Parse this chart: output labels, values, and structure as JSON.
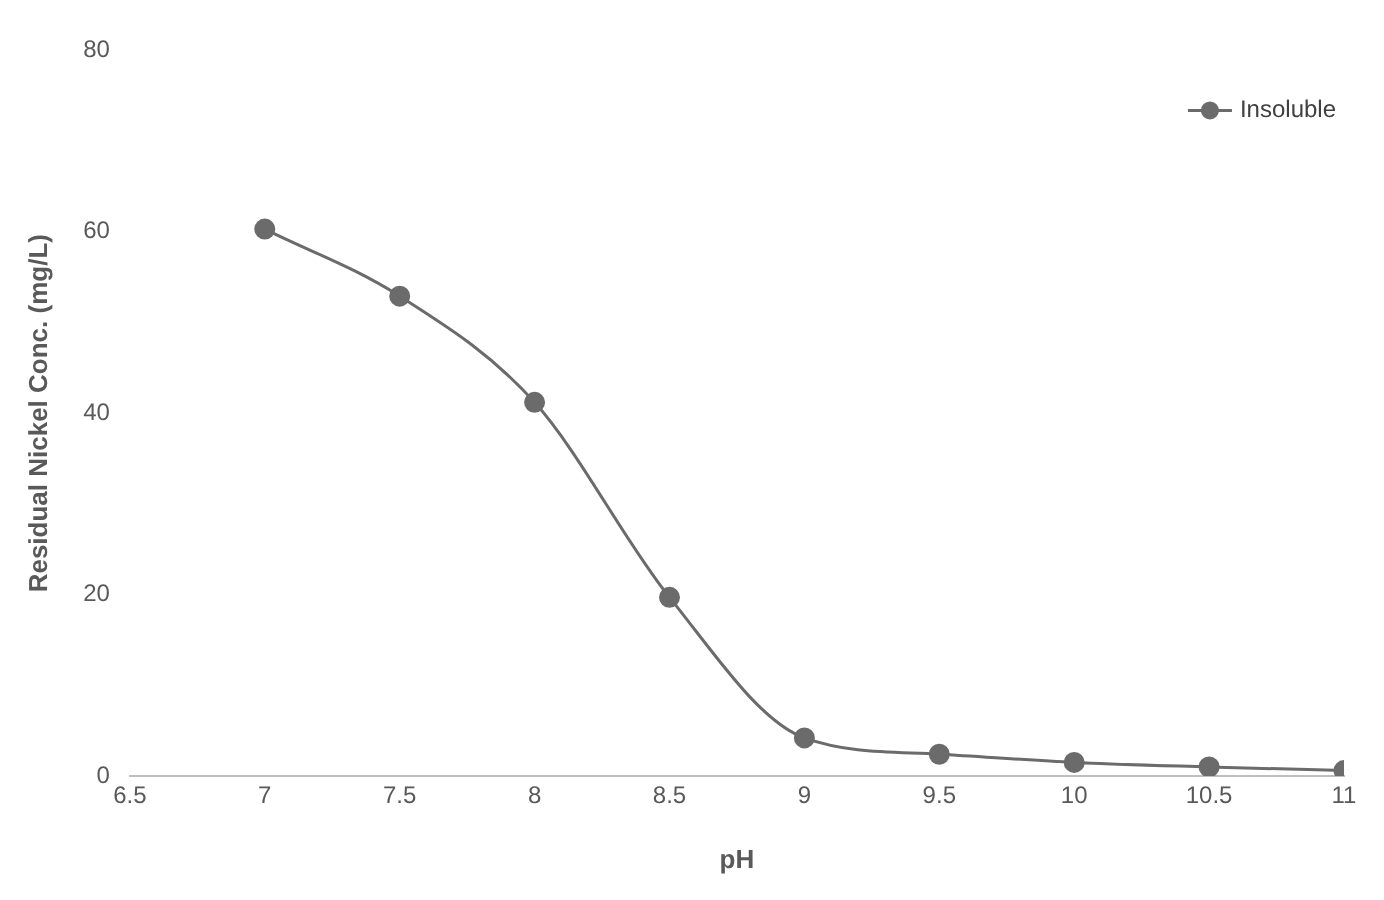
{
  "chart_data": {
    "type": "line",
    "xlabel": "pH",
    "ylabel": "Residual Nickel Conc. (mg/L)",
    "x": [
      7,
      7.5,
      8,
      8.5,
      9,
      9.5,
      10,
      10.5,
      11
    ],
    "series": [
      {
        "name": "Insoluble",
        "color": "#6b6b6b",
        "values": [
          60.3,
          52.9,
          41.2,
          19.7,
          4.2,
          2.4,
          1.5,
          1.0,
          0.6
        ]
      }
    ],
    "xlim": [
      6.5,
      11
    ],
    "xticks": [
      6.5,
      7,
      7.5,
      8,
      8.5,
      9,
      9.5,
      10,
      10.5,
      11
    ],
    "ylim": [
      0,
      80
    ],
    "yticks": [
      0,
      20,
      40,
      60,
      80
    ],
    "grid": false,
    "legend": "top right",
    "marker": "circle",
    "line_style": "solid"
  }
}
